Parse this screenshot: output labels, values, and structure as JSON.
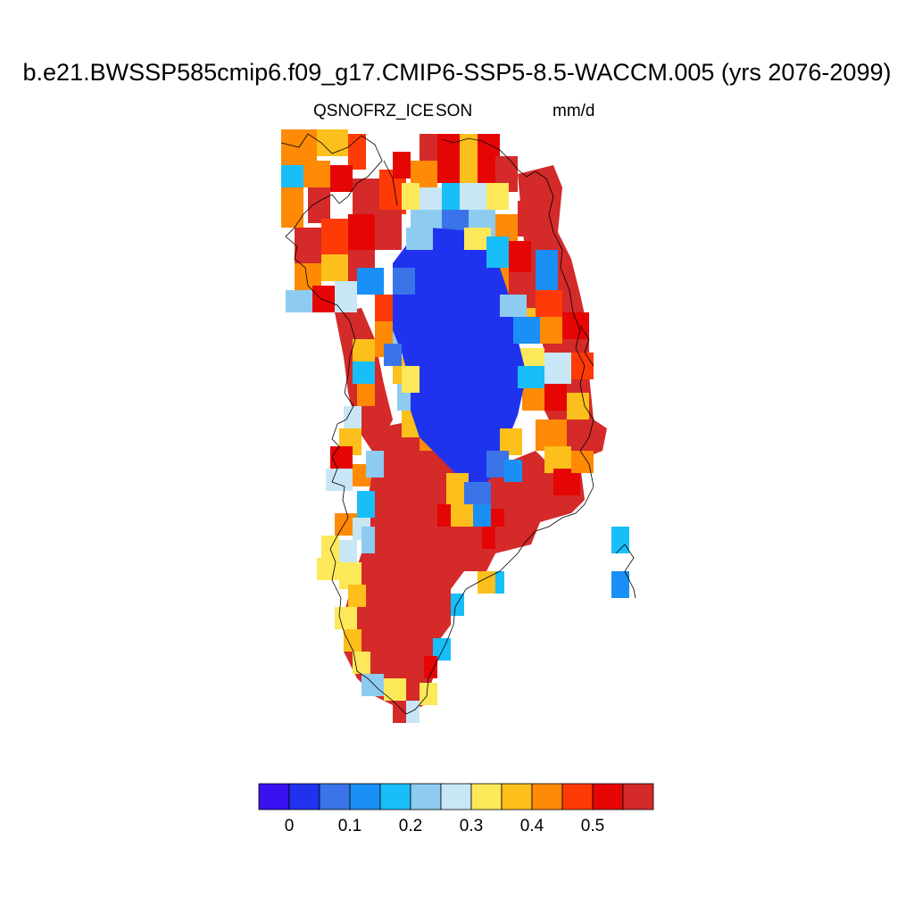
{
  "title": "b.e21.BWSSP585cmip6.f09_g17.CMIP6-SSP5-8.5-WACCM.005 (yrs 2076-2099)",
  "variable": "QSNOFRZ_ICE",
  "season": "SON",
  "units": "mm/d",
  "colorbar": {
    "colors": [
      "#3a10f0",
      "#1f33ee",
      "#3a74e8",
      "#1a8ff5",
      "#18bef8",
      "#8ecbf0",
      "#c8e6f6",
      "#fde85a",
      "#fcbf1b",
      "#fe8a05",
      "#fe3b06",
      "#e50505",
      "#d42a2a"
    ],
    "tick_labels": [
      "0",
      "0.1",
      "0.2",
      "0.3",
      "0.4",
      "0.5"
    ]
  },
  "map_data": {
    "type": "gridded-map",
    "region": "Greenland",
    "interior_level": "< 0",
    "southern_interior_level": "> 0.55",
    "coastal_margin_levels": "mixed, 0 to 0.55"
  }
}
